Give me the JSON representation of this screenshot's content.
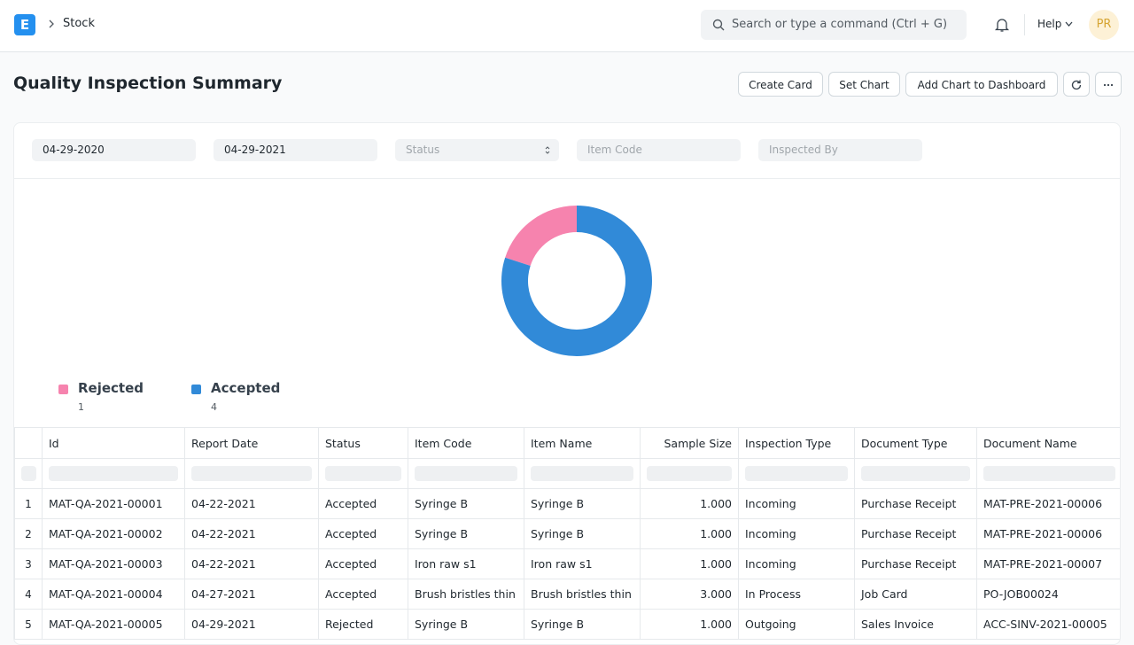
{
  "navbar": {
    "logo": "E",
    "breadcrumb": "Stock",
    "search_placeholder": "Search or type a command (Ctrl + G)",
    "help": "Help",
    "avatar": "PR"
  },
  "page": {
    "title": "Quality Inspection Summary",
    "buttons": [
      "Create Card",
      "Set Chart",
      "Add Chart to Dashboard"
    ]
  },
  "filters": {
    "values": [
      "04-29-2020",
      "04-29-2021"
    ],
    "placeholders": [
      "Status",
      "Item Code",
      "Inspected By"
    ]
  },
  "chart_data": {
    "type": "donut",
    "categories": [
      "Rejected",
      "Accepted"
    ],
    "values": [
      1,
      4
    ],
    "colors": [
      "#f683ae",
      "#318ad8"
    ]
  },
  "table": {
    "columns": [
      "Id",
      "Report Date",
      "Status",
      "Item Code",
      "Item Name",
      "Sample Size",
      "Inspection Type",
      "Document Type",
      "Document Name"
    ],
    "rows": [
      [
        "1",
        "MAT-QA-2021-00001",
        "04-22-2021",
        "Accepted",
        "Syringe B",
        "Syringe B",
        "1.000",
        "Incoming",
        "Purchase Receipt",
        "MAT-PRE-2021-00006"
      ],
      [
        "2",
        "MAT-QA-2021-00002",
        "04-22-2021",
        "Accepted",
        "Syringe B",
        "Syringe B",
        "1.000",
        "Incoming",
        "Purchase Receipt",
        "MAT-PRE-2021-00006"
      ],
      [
        "3",
        "MAT-QA-2021-00003",
        "04-22-2021",
        "Accepted",
        "Iron raw s1",
        "Iron raw s1",
        "1.000",
        "Incoming",
        "Purchase Receipt",
        "MAT-PRE-2021-00007"
      ],
      [
        "4",
        "MAT-QA-2021-00004",
        "04-27-2021",
        "Accepted",
        "Brush bristles thin",
        "Brush bristles thin",
        "3.000",
        "In Process",
        "Job Card",
        "PO-JOB00024"
      ],
      [
        "5",
        "MAT-QA-2021-00005",
        "04-29-2021",
        "Rejected",
        "Syringe B",
        "Syringe B",
        "1.000",
        "Outgoing",
        "Sales Invoice",
        "ACC-SINV-2021-00005"
      ]
    ]
  }
}
